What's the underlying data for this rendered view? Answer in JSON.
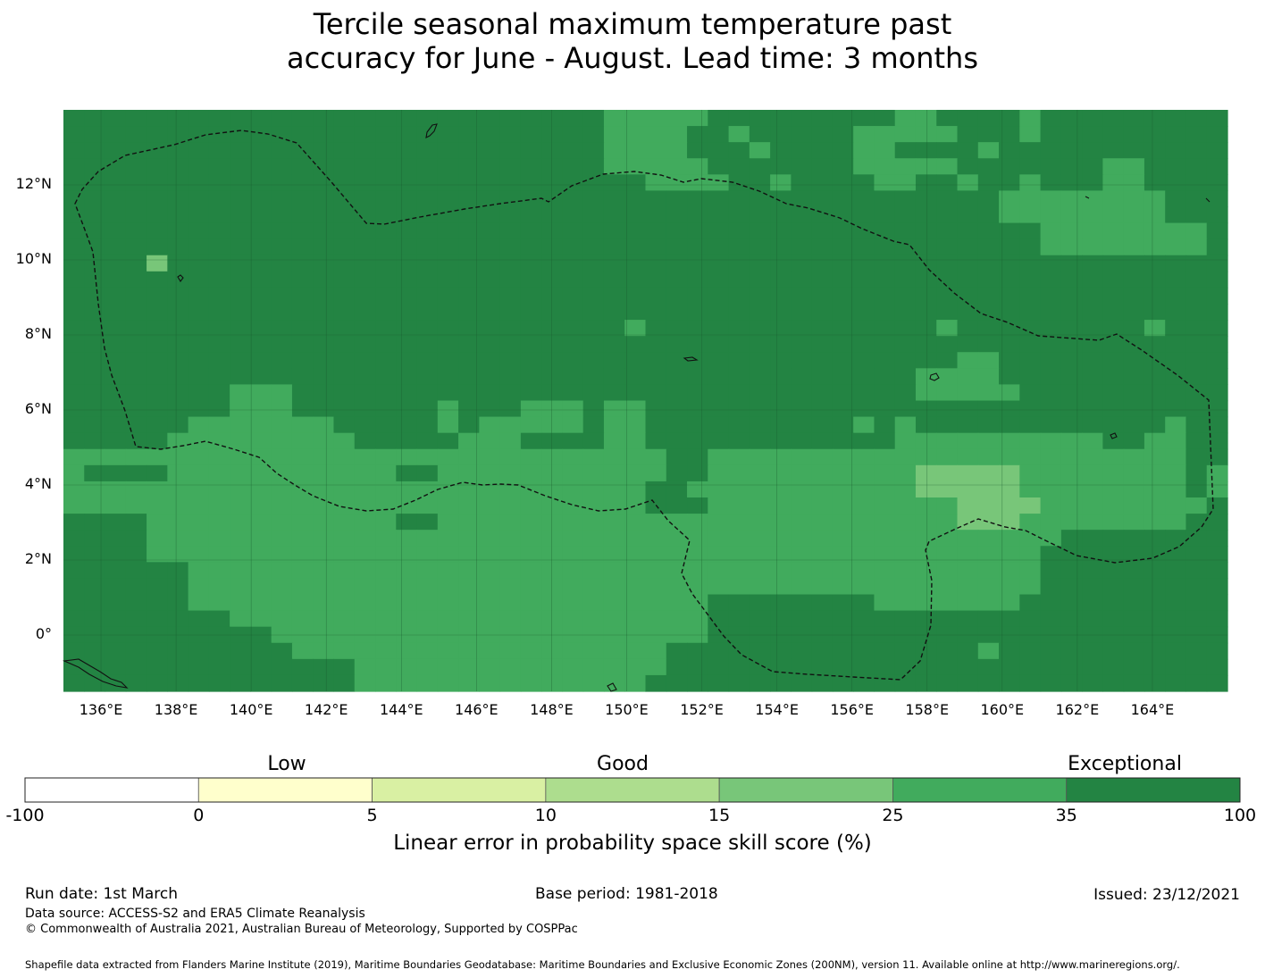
{
  "title": {
    "line1": "Tercile seasonal maximum temperature past",
    "line2": "accuracy for June - August. Lead time: 3 months"
  },
  "map": {
    "lat_labels": [
      "12°N",
      "10°N",
      "8°N",
      "6°N",
      "4°N",
      "2°N",
      "0°"
    ],
    "lat_values": [
      12,
      10,
      8,
      6,
      4,
      2,
      0
    ],
    "lon_labels": [
      "136°E",
      "138°E",
      "140°E",
      "142°E",
      "144°E",
      "146°E",
      "148°E",
      "150°E",
      "152°E",
      "154°E",
      "156°E",
      "158°E",
      "160°E",
      "162°E",
      "164°E"
    ],
    "lon_values": [
      136,
      138,
      140,
      142,
      144,
      146,
      148,
      150,
      152,
      154,
      156,
      158,
      160,
      162,
      164
    ],
    "extent": {
      "lon_min": 135,
      "lon_max": 166,
      "lat_min": -1.5,
      "lat_max": 14
    },
    "cell_size_deg": 0.833,
    "grid_rows_note": "values are LEPS skill score class index, 0 = 15-25, 1 = 25-35, 2 = 35-100",
    "grid": [
      "22222222222222222222222222111112222222221122221222222222",
      "22222222222222222222222222111122122222111112221222222222",
      "22222222222222222222222222111122212222112222122222222222",
      "22222222222222222222222222111112222222111112222222112222",
      "22222222222222222222222222221111221222211221221222112222",
      "22222222222222222222222222222222222222222222211111111222",
      "22222222222222222222222222222222222222222222211111111222",
      "22222222222222222222222222222222222222222222222111111112",
      "22222222222222222222222222222222222222222222222111111112",
      "22220222222222222222222222222222222222222222222222222222",
      "22222222222222222222222222222222222222222222222222222222",
      "22222222222222222222222222222222222222222222222222222222",
      "22222222222222222222222222222222222222222222222222222222",
      "22222222222222222222222222212222222222222212222222221222",
      "22222222222222222222222222222222222222222222222222222222",
      "22222222222222222222222222222222222222222221122222222222",
      "22222222222222222222222222222222222222222111122222222222",
      "22222222111222222222222222222222222222222111112222222222",
      "22222222111222222212221112112222222222222222222222222222",
      "22222211111112222212111112112222222222121222222222222122",
      "22222111111111222221112222112222222222221111111111221122",
      "11111111111111111111111111111221111111111111111111111122",
      "12222111111111112211111111111221111111111000001111111121",
      "11111111111111111111111111112211111111111000001111111121",
      "11111111111111111111111111112221111111111110000111111112",
      "22221111111111112211111111111111111111111110001111111122",
      "22221111111111111111111111111111111111111111111122222222",
      "22221111111111111111111111111111111111111111111222222222",
      "22222211111111111111111111111111111111111111111222222222",
      "22222211111111111111111111111111111111111111111222222222",
      "22222211111111111111111111111112222222211111112222222222",
      "22222222111111111111111111111112222222222222222222222222",
      "22222222221111111111111111111112222222222222222222222222",
      "22222222222111111111111111111222222222222222122222222222",
      "22222222222222111111111111111222222222222222222222222222",
      "22222222222222111111111111112222222222222222222222222222"
    ]
  },
  "legend": {
    "categories": [
      {
        "label": "Low",
        "boundary_from": 0,
        "boundary_to": 10
      },
      {
        "label": "Good",
        "boundary_from": 10,
        "boundary_to": 25
      },
      {
        "label": "Exceptional",
        "boundary_from": 35,
        "boundary_to": 100
      }
    ],
    "ticks": [
      "-100",
      "0",
      "5",
      "10",
      "15",
      "25",
      "35",
      "100"
    ],
    "colors": [
      "#ffffff",
      "#ffffcc",
      "#d9f0a3",
      "#addd8e",
      "#78c679",
      "#41ab5d",
      "#238443"
    ],
    "axis_title": "Linear error in probability space skill score (%)"
  },
  "footer": {
    "run_date": "Run date: 1st March",
    "base_period": "Base period: 1981-2018",
    "issued": "Issued: 23/12/2021",
    "data_source": "Data source: ACCESS-S2 and ERA5 Climate Reanalysis",
    "copyright": "© Commonwealth of Australia 2021, Australian Bureau of Meteorology, Supported by COSPPac",
    "shapefile": "Shapefile data extracted from Flanders Marine Institute (2019), Maritime Boundaries Geodatabase: Maritime Boundaries and Exclusive Economic Zones (200NM), version 11. Available online at http://www.marineregions.org/."
  }
}
